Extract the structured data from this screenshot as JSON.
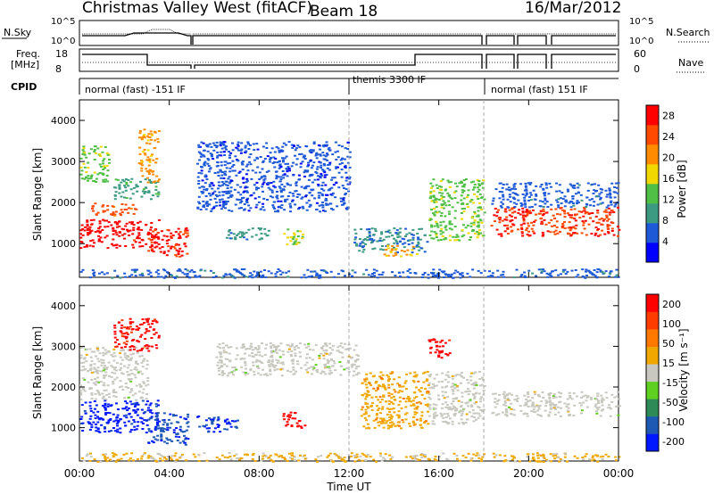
{
  "header": {
    "title": "Christmas Valley West (fitACF)",
    "beam": "Beam 18",
    "date": "16/Mar/2012"
  },
  "strip_labels": {
    "nsky": "N.Sky",
    "nsky_ticks": [
      "10^5",
      "10^0"
    ],
    "nsearch": "N.Search",
    "nsearch_ticks": [
      "10^5",
      "10^0"
    ],
    "freq_line1": "Freq.",
    "freq_line2": "[MHz]",
    "freq_ticks": [
      "18",
      "8"
    ],
    "nave": "Nave",
    "nave_ticks": [
      "60",
      "0"
    ],
    "cpid": "CPID"
  },
  "cpid_segments": [
    {
      "label": "normal (fast) -151 IF",
      "start_h": 0.0
    },
    {
      "label": "themis 3300 IF",
      "start_h": 12.0
    },
    {
      "label": "normal (fast) 151 IF",
      "start_h": 18.0
    }
  ],
  "colors": {
    "power_scale": [
      "#0000ff",
      "#1e5ad7",
      "#3c9a82",
      "#4fbf45",
      "#f0d800",
      "#ff8c00",
      "#ff4a00",
      "#ff0000"
    ],
    "velocity_scale": [
      "#0018ff",
      "#1e5ab4",
      "#2e8b57",
      "#5fd020",
      "#c8c8c0",
      "#f0a800",
      "#ff7800",
      "#ff3c00",
      "#ff0000"
    ]
  },
  "chart_data": [
    {
      "type": "heatmap",
      "panel": "power",
      "ylabel": "Slant Range [km]",
      "xlabel": "Time UT",
      "x_ticks": [
        "00:00",
        "04:00",
        "08:00",
        "12:00",
        "16:00",
        "20:00",
        "00:00"
      ],
      "xlim_hours": [
        0,
        24
      ],
      "y_ticks": [
        1000,
        2000,
        3000,
        4000
      ],
      "ylim_km": [
        180,
        4500
      ],
      "colorbar_label": "Power [dB]",
      "colorbar_ticks": [
        4,
        8,
        12,
        16,
        20,
        24,
        28
      ],
      "colorbar_range": [
        0,
        30
      ],
      "regions": [
        {
          "t0": 0.0,
          "t1": 3.5,
          "r0": 900,
          "r1": 1600,
          "level": 28
        },
        {
          "t0": 3.0,
          "t1": 4.8,
          "r0": 700,
          "r1": 1400,
          "level": 27
        },
        {
          "t0": 0.5,
          "t1": 2.5,
          "r0": 1700,
          "r1": 2000,
          "level": 24
        },
        {
          "t0": 0.0,
          "t1": 1.3,
          "r0": 2500,
          "r1": 3400,
          "level": 14
        },
        {
          "t0": 1.5,
          "t1": 3.5,
          "r0": 2100,
          "r1": 2600,
          "level": 10
        },
        {
          "t0": 2.6,
          "t1": 3.5,
          "r0": 2500,
          "r1": 3800,
          "level": 20
        },
        {
          "t0": 5.2,
          "t1": 12.0,
          "r0": 1800,
          "r1": 3500,
          "level": 5
        },
        {
          "t0": 6.5,
          "t1": 8.5,
          "r0": 1100,
          "r1": 1400,
          "level": 9
        },
        {
          "t0": 9.0,
          "t1": 10.0,
          "r0": 1000,
          "r1": 1400,
          "level": 16
        },
        {
          "t0": 12.2,
          "t1": 15.5,
          "r0": 800,
          "r1": 1400,
          "level": 8
        },
        {
          "t0": 13.5,
          "t1": 15.0,
          "r0": 700,
          "r1": 1000,
          "level": 19
        },
        {
          "t0": 15.5,
          "t1": 18.0,
          "r0": 1100,
          "r1": 2600,
          "level": 14
        },
        {
          "t0": 18.3,
          "t1": 24.0,
          "r0": 1200,
          "r1": 1900,
          "level": 26
        },
        {
          "t0": 18.3,
          "t1": 24.0,
          "r0": 1900,
          "r1": 2500,
          "level": 6
        },
        {
          "t0": 0.0,
          "t1": 24.0,
          "r0": 180,
          "r1": 400,
          "level": 6
        }
      ]
    },
    {
      "type": "heatmap",
      "panel": "velocity",
      "ylabel": "Slant Range [km]",
      "xlabel": "Time UT",
      "x_ticks": [
        "00:00",
        "04:00",
        "08:00",
        "12:00",
        "16:00",
        "20:00",
        "00:00"
      ],
      "xlim_hours": [
        0,
        24
      ],
      "y_ticks": [
        1000,
        2000,
        3000,
        4000
      ],
      "ylim_km": [
        180,
        4500
      ],
      "colorbar_label": "Velocity [m s⁻¹]",
      "colorbar_ticks": [
        200,
        100,
        50,
        15,
        -15,
        -50,
        -100,
        -200
      ],
      "colorbar_range": [
        -250,
        250
      ],
      "regions": [
        {
          "t0": 0.0,
          "t1": 3.5,
          "r0": 900,
          "r1": 1700,
          "level": -220
        },
        {
          "t0": 3.0,
          "t1": 4.8,
          "r0": 600,
          "r1": 1400,
          "level": -180
        },
        {
          "t0": 0.0,
          "t1": 3.0,
          "r0": 1700,
          "r1": 3000,
          "level": 0
        },
        {
          "t0": 1.5,
          "t1": 3.5,
          "r0": 2900,
          "r1": 3700,
          "level": 220
        },
        {
          "t0": 5.2,
          "t1": 7.0,
          "r0": 900,
          "r1": 1300,
          "level": -200
        },
        {
          "t0": 6.0,
          "t1": 12.5,
          "r0": 2300,
          "r1": 3100,
          "level": 0
        },
        {
          "t0": 9.0,
          "t1": 10.0,
          "r0": 1000,
          "r1": 1400,
          "level": 230
        },
        {
          "t0": 12.5,
          "t1": 15.5,
          "r0": 1000,
          "r1": 2400,
          "level": 60
        },
        {
          "t0": 15.5,
          "t1": 18.0,
          "r0": 1100,
          "r1": 2400,
          "level": 0
        },
        {
          "t0": 15.5,
          "t1": 16.5,
          "r0": 2700,
          "r1": 3200,
          "level": 220
        },
        {
          "t0": 18.3,
          "t1": 24.0,
          "r0": 1300,
          "r1": 1900,
          "level": 0
        },
        {
          "t0": 0.0,
          "t1": 24.0,
          "r0": 180,
          "r1": 400,
          "level": 40
        }
      ]
    }
  ]
}
